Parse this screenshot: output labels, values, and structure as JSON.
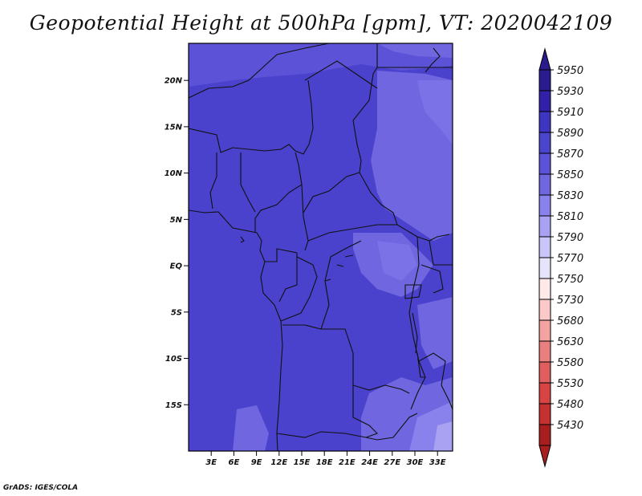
{
  "title": "Geopotential Height at 500hPa [gpm], VT: 2020042109",
  "footer": "GrADS: IGES/COLA",
  "map": {
    "lon_range": [
      0,
      35
    ],
    "lat_range": [
      -20,
      24
    ],
    "lat_ticks": [
      {
        "value": 20,
        "label": "20N"
      },
      {
        "value": 15,
        "label": "15N"
      },
      {
        "value": 10,
        "label": "10N"
      },
      {
        "value": 5,
        "label": "5N"
      },
      {
        "value": 0,
        "label": "EQ"
      },
      {
        "value": -5,
        "label": "5S"
      },
      {
        "value": -10,
        "label": "10S"
      },
      {
        "value": -15,
        "label": "15S"
      }
    ],
    "lon_ticks": [
      {
        "value": 3,
        "label": "3E"
      },
      {
        "value": 6,
        "label": "6E"
      },
      {
        "value": 9,
        "label": "9E"
      },
      {
        "value": 12,
        "label": "12E"
      },
      {
        "value": 15,
        "label": "15E"
      },
      {
        "value": 18,
        "label": "18E"
      },
      {
        "value": 21,
        "label": "21E"
      },
      {
        "value": 24,
        "label": "24E"
      },
      {
        "value": 27,
        "label": "27E"
      },
      {
        "value": 30,
        "label": "30E"
      },
      {
        "value": 33,
        "label": "33E"
      }
    ]
  },
  "colorbar": {
    "labels": [
      "5950",
      "5930",
      "5910",
      "5890",
      "5870",
      "5850",
      "5830",
      "5810",
      "5790",
      "5770",
      "5750",
      "5730",
      "5680",
      "5630",
      "5580",
      "5530",
      "5480",
      "5430"
    ],
    "colors": [
      "#2a1b8e",
      "#3320a8",
      "#3f35c3",
      "#4b44cc",
      "#5b52d8",
      "#6f66e0",
      "#8a82ec",
      "#a9a2f3",
      "#cac6f8",
      "#e6e4fb",
      "#ffe9e9",
      "#fcc9c9",
      "#f4a3a3",
      "#e97f7f",
      "#e05e5e",
      "#d84444",
      "#c53030",
      "#a81e1e"
    ]
  }
}
